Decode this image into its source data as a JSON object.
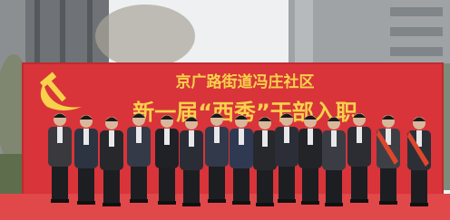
{
  "banner": {
    "line1": "京广路街道冯庄社区",
    "line2": "新一届“西秀”干部入职"
  }
}
